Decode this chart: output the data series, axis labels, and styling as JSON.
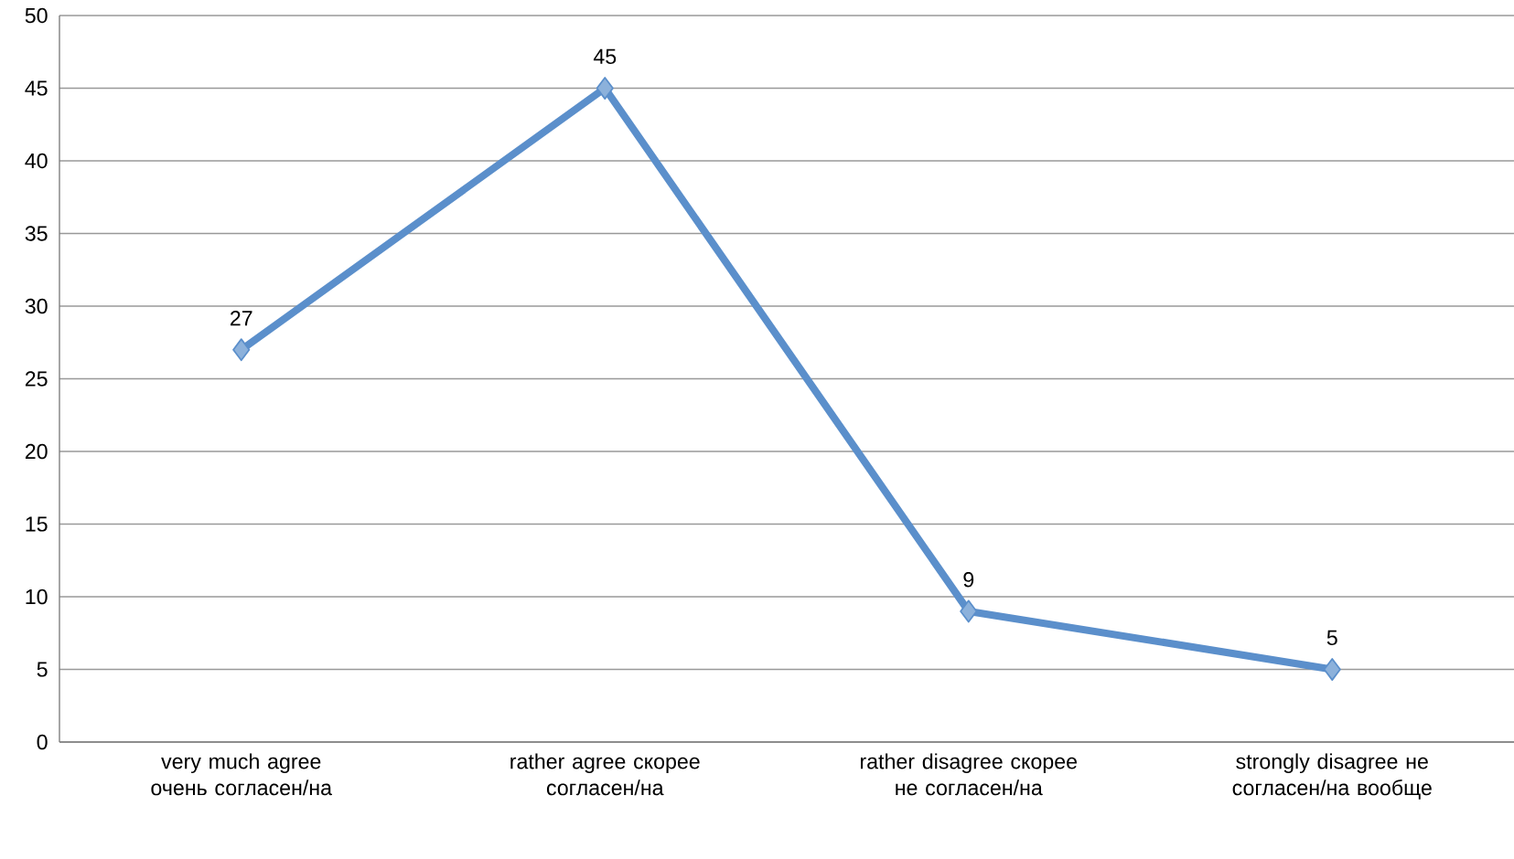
{
  "chart_data": {
    "type": "line",
    "categories": [
      "very much agree очень согласен/на",
      "rather agree скорее согласен/на",
      "rather disagree скорее не согласен/на",
      "strongly disagree не согласен/на вообще"
    ],
    "values": [
      27,
      45,
      9,
      5
    ],
    "color": "#5b8fcb",
    "marker": "diamond",
    "data_labels": true,
    "grid": "y",
    "ylim": [
      0,
      50
    ],
    "yticks": [
      0,
      5,
      10,
      15,
      20,
      25,
      30,
      35,
      40,
      45,
      50
    ]
  }
}
